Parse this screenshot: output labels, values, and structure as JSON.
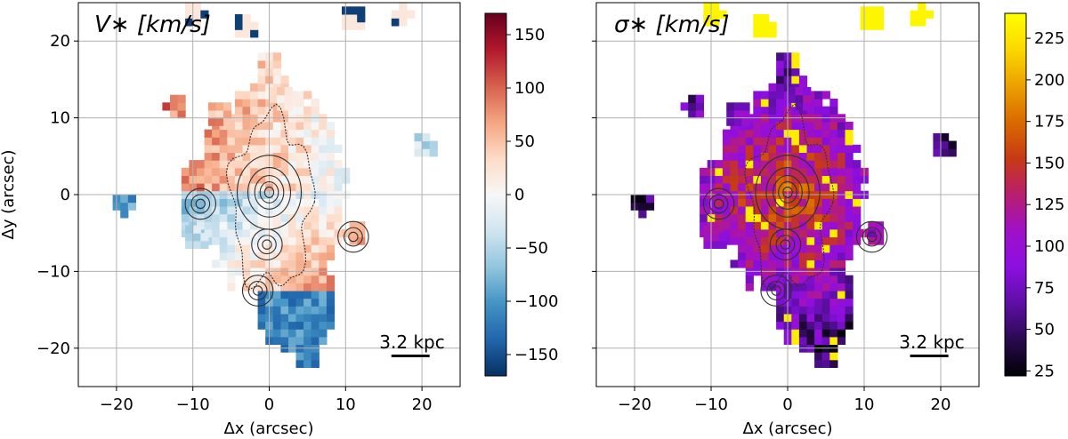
{
  "chart_data": [
    {
      "type": "heatmap",
      "title": "V∗ [km/s]",
      "quantity": "stellar velocity",
      "xlabel": "Δx (arcsec)",
      "ylabel": "Δy (arcsec)",
      "xlim": [
        -25,
        25
      ],
      "ylim": [
        -25,
        25
      ],
      "xticks": [
        -20,
        -10,
        0,
        10,
        20
      ],
      "yticks": [
        -20,
        -10,
        0,
        10,
        20
      ],
      "xtick_labels": [
        "−20",
        "−10",
        "0",
        "10",
        "20"
      ],
      "ytick_labels": [
        "−20",
        "−10",
        "0",
        "10",
        "20"
      ],
      "grid": true,
      "colormap": "RdBu_r",
      "colormap_stops": [
        "#053061",
        "#2166ac",
        "#4393c3",
        "#92c5de",
        "#d1e5f0",
        "#f7f7f7",
        "#fddbc7",
        "#f4a582",
        "#d6604d",
        "#b2182b",
        "#67001f"
      ],
      "colorbar_range": [
        -170,
        170
      ],
      "colorbar_ticks": [
        -150,
        -100,
        -50,
        0,
        50,
        100,
        150
      ],
      "colorbar_tick_labels": [
        "−150",
        "−100",
        "−50",
        "0",
        "50",
        "100",
        "150"
      ],
      "scalebar_label": "3.2 kpc",
      "scalebar_length_arcsec": 5
    },
    {
      "type": "heatmap",
      "title": "σ∗ [km/s]",
      "quantity": "stellar velocity dispersion",
      "xlabel": "Δx (arcsec)",
      "ylabel": "",
      "xlim": [
        -25,
        25
      ],
      "ylim": [
        -25,
        25
      ],
      "xticks": [
        -20,
        -10,
        0,
        10,
        20
      ],
      "yticks": [
        -20,
        -10,
        0,
        10,
        20
      ],
      "xtick_labels": [
        "−20",
        "−10",
        "0",
        "10",
        "20"
      ],
      "ytick_labels": [],
      "grid": true,
      "colormap": "gnuplot",
      "colormap_stops": [
        "#000004",
        "#2a0a4e",
        "#5e0fa6",
        "#8c0fe0",
        "#a010c8",
        "#b81e6e",
        "#c73a14",
        "#d96a00",
        "#eca000",
        "#fbd800",
        "#ffff00"
      ],
      "colorbar_range": [
        22,
        240
      ],
      "colorbar_ticks": [
        25,
        50,
        75,
        100,
        125,
        150,
        175,
        200,
        225
      ],
      "colorbar_tick_labels": [
        "25",
        "50",
        "75",
        "100",
        "125",
        "150",
        "175",
        "200",
        "225"
      ],
      "scalebar_label": "3.2 kpc",
      "scalebar_length_arcsec": 5
    }
  ]
}
